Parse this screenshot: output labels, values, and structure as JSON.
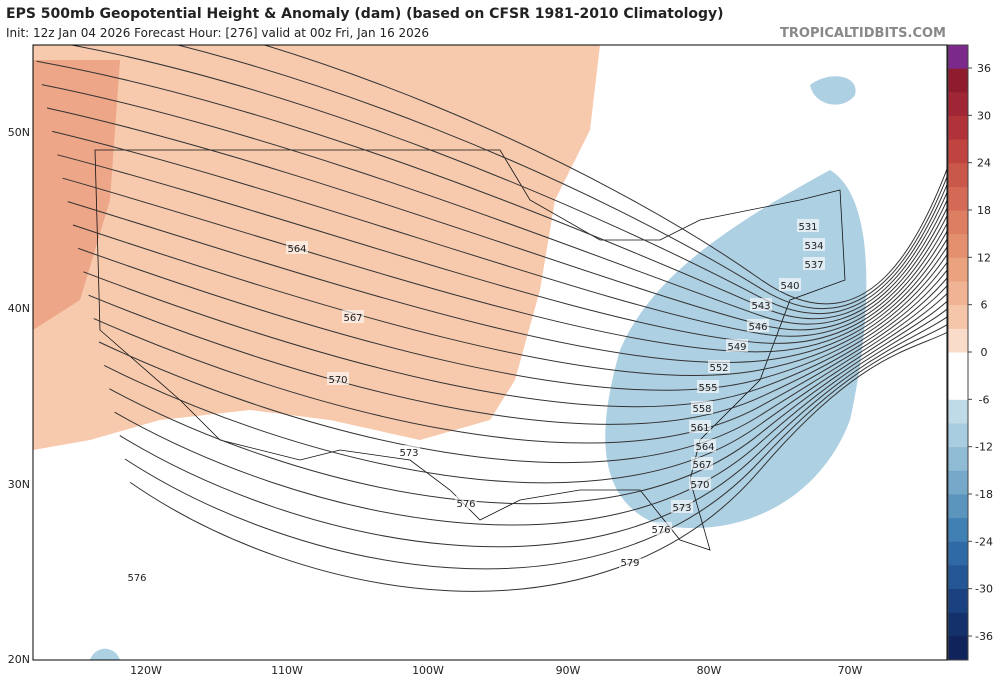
{
  "header": {
    "title": "EPS 500mb Geopotential Height & Anomaly (dam) (based on CFSR 1981-2010 Climatology)",
    "subtitle": "Init: 12z Jan 04 2026   Forecast Hour: [276]   valid at 00z Fri, Jan 16 2026",
    "watermark": "TROPICALTIDBITS.COM"
  },
  "map": {
    "lat_labels": [
      "50N",
      "40N",
      "30N",
      "20N"
    ],
    "lon_labels": [
      "120W",
      "110W",
      "100W",
      "90W",
      "80W",
      "70W"
    ],
    "contour_labels": [
      564,
      567,
      570,
      573,
      576,
      576,
      579,
      531,
      534,
      537,
      540,
      543,
      546,
      549,
      552,
      555,
      558,
      561,
      564,
      567,
      570,
      573,
      576
    ]
  },
  "colorbar": {
    "ticks": [
      36,
      30,
      24,
      18,
      12,
      6,
      0,
      -6,
      -12,
      -18,
      -24,
      -30,
      -36
    ],
    "colors": [
      "#7b2a8c",
      "#8e1c2e",
      "#a02535",
      "#b1333a",
      "#bf4440",
      "#c9574a",
      "#d46a55",
      "#dd7d62",
      "#e4906e",
      "#eba27f",
      "#f0b393",
      "#f5c6aa",
      "#f9dcc9",
      "#ffffff",
      "#ffffff",
      "#c0dbe8",
      "#a8cde0",
      "#8fbbd4",
      "#76a9c9",
      "#5b95bd",
      "#4180b3",
      "#2f6aa6",
      "#245594",
      "#1b4180",
      "#15316b",
      "#10235a"
    ]
  }
}
